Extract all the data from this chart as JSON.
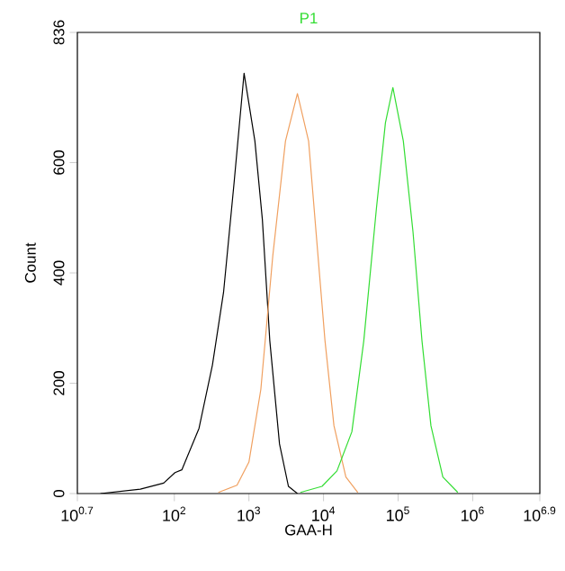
{
  "chart_data": {
    "type": "line",
    "title": "P1",
    "xlabel": "GAA-H",
    "ylabel": "Count",
    "log": "x",
    "xlim": [
      5.012,
      7943000
    ],
    "xticks": [
      {
        "value": 5.012,
        "label": "10$^{0.7}$"
      },
      {
        "value": 100,
        "label": "10$^{2}$"
      },
      {
        "value": 1000,
        "label": "10$^{3}$"
      },
      {
        "value": 10000,
        "label": "10$^{4}$"
      },
      {
        "value": 100000,
        "label": "10$^{5}$"
      },
      {
        "value": 1000000,
        "label": "10$^{6}$"
      },
      {
        "value": 7943000,
        "label": "10$^{6.9}$"
      }
    ],
    "ylim": [
      0,
      836
    ],
    "yticks": [
      0,
      200,
      400,
      600,
      836
    ],
    "grid": false,
    "marker": "none",
    "line_style": "solid",
    "series": [
      {
        "color": "#000000",
        "x": [
          10.2,
          35,
          72,
          102,
          126,
          214,
          324,
          457,
          631,
          861,
          1202,
          1514,
          1905,
          2570,
          3388,
          4467
        ],
        "values": [
          0,
          8,
          19,
          38,
          43,
          118,
          233,
          365,
          562,
          762,
          639,
          497,
          277,
          90,
          13,
          0
        ]
      },
      {
        "color": "#f0a060",
        "x": [
          389,
          692,
          1000,
          1445,
          2089,
          3090,
          4467,
          6310,
          7943,
          10470,
          13800,
          19950,
          28840
        ],
        "values": [
          2,
          15,
          57,
          189,
          431,
          639,
          725,
          639,
          474,
          277,
          123,
          30,
          2
        ]
      },
      {
        "color": "#33dd33",
        "x": [
          4898,
          9550,
          15140,
          23990,
          34670,
          51290,
          67610,
          85110,
          117500,
          158500,
          208900,
          275400,
          398100,
          631000
        ],
        "values": [
          2,
          13,
          41,
          112,
          277,
          518,
          672,
          736,
          639,
          474,
          277,
          123,
          30,
          2
        ]
      }
    ]
  }
}
